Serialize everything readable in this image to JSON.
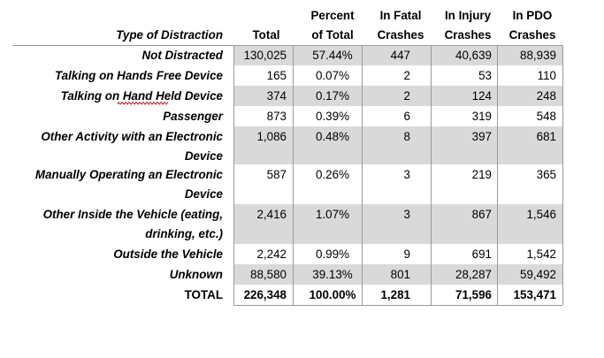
{
  "headers": {
    "type": "Type of Distraction",
    "total": "Total",
    "percent": [
      "Percent",
      "of Total"
    ],
    "fatal": [
      "In Fatal",
      "Crashes"
    ],
    "injury": [
      "In Injury",
      "Crashes"
    ],
    "pdo": [
      "In PDO",
      "Crashes"
    ]
  },
  "rows": [
    {
      "label": [
        "Not Distracted"
      ],
      "total": "130,025",
      "percent": "57.44%",
      "fatal": "447",
      "injury": "40,639",
      "pdo": "88,939"
    },
    {
      "label": [
        "Talking on Hands Free Device"
      ],
      "total": "165",
      "percent": "0.07%",
      "fatal": "2",
      "injury": "53",
      "pdo": "110"
    },
    {
      "label": [
        "Talking on Hand Held Device"
      ],
      "total": "374",
      "percent": "0.17%",
      "fatal": "2",
      "injury": "124",
      "pdo": "248"
    },
    {
      "label": [
        "Passenger"
      ],
      "total": "873",
      "percent": "0.39%",
      "fatal": "6",
      "injury": "319",
      "pdo": "548"
    },
    {
      "label": [
        "Other Activity with an Electronic",
        "Device"
      ],
      "total": "1,086",
      "percent": "0.48%",
      "fatal": "8",
      "injury": "397",
      "pdo": "681"
    },
    {
      "label": [
        "Manually Operating an Electronic",
        "Device"
      ],
      "total": "587",
      "percent": "0.26%",
      "fatal": "3",
      "injury": "219",
      "pdo": "365"
    },
    {
      "label": [
        "Other Inside the Vehicle (eating,",
        "drinking, etc.)"
      ],
      "total": "2,416",
      "percent": "1.07%",
      "fatal": "3",
      "injury": "867",
      "pdo": "1,546"
    },
    {
      "label": [
        "Outside the Vehicle"
      ],
      "total": "2,242",
      "percent": "0.99%",
      "fatal": "9",
      "injury": "691",
      "pdo": "1,542"
    },
    {
      "label": [
        "Unknown"
      ],
      "total": "88,580",
      "percent": "39.13%",
      "fatal": "801",
      "injury": "28,287",
      "pdo": "59,492"
    }
  ],
  "total_row": {
    "label": "TOTAL",
    "total": "226,348",
    "percent": "100.00%",
    "fatal": "1,281",
    "injury": "71,596",
    "pdo": "153,471"
  },
  "colors": {
    "band": "#d9d9d9",
    "grid": "#9a9a9a",
    "spellcheck": "#d00000"
  }
}
